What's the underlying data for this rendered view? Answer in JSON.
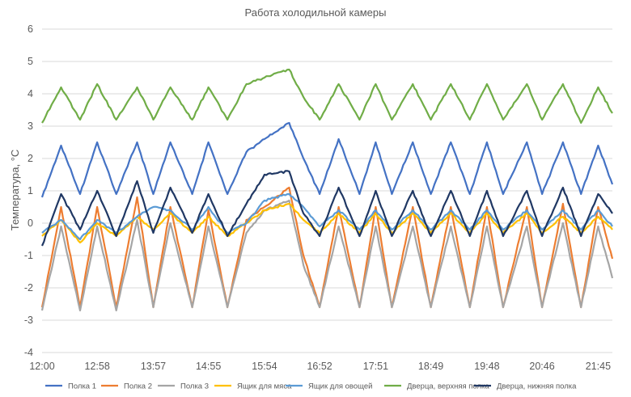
{
  "chart_data": {
    "type": "line",
    "title": "Работа холодильной камеры",
    "xlabel": "",
    "ylabel": "Температура, °С",
    "ylim": [
      -4,
      6
    ],
    "yticks": [
      "6",
      "5",
      "4",
      "3",
      "2",
      "1",
      "0",
      "-1",
      "-2",
      "-3",
      "-4"
    ],
    "xticks": [
      "12:00",
      "12:58",
      "13:57",
      "14:55",
      "15:54",
      "16:52",
      "17:51",
      "18:49",
      "19:48",
      "20:46",
      "21:45"
    ],
    "grid": true,
    "legend": "bottom",
    "series": [
      {
        "name": "Полка 1",
        "color": "#4472c4",
        "x": [
          "12:00",
          "12:20",
          "12:40",
          "12:58",
          "13:18",
          "13:40",
          "13:57",
          "14:15",
          "14:38",
          "14:55",
          "15:15",
          "15:35",
          "15:54",
          "16:20",
          "16:35",
          "16:52",
          "17:12",
          "17:34",
          "17:51",
          "18:08",
          "18:30",
          "18:49",
          "19:10",
          "19:30",
          "19:48",
          "20:05",
          "20:30",
          "20:46",
          "21:08",
          "21:27",
          "21:45",
          "22:00"
        ],
        "y": [
          0.8,
          2.4,
          0.9,
          2.5,
          0.9,
          2.5,
          0.9,
          2.5,
          0.9,
          2.5,
          0.9,
          2.2,
          2.6,
          3.1,
          2.0,
          0.9,
          2.6,
          0.9,
          2.5,
          0.9,
          2.5,
          0.9,
          2.5,
          0.9,
          2.5,
          0.9,
          2.5,
          0.9,
          2.5,
          0.9,
          2.4,
          1.2
        ]
      },
      {
        "name": "Полка 2",
        "color": "#ed7d31",
        "x": [
          "12:00",
          "12:20",
          "12:40",
          "12:58",
          "13:18",
          "13:40",
          "13:57",
          "14:15",
          "14:38",
          "14:55",
          "15:15",
          "15:35",
          "15:54",
          "16:20",
          "16:35",
          "16:52",
          "17:12",
          "17:34",
          "17:51",
          "18:08",
          "18:30",
          "18:49",
          "19:10",
          "19:30",
          "19:48",
          "20:05",
          "20:30",
          "20:46",
          "21:08",
          "21:27",
          "21:45",
          "22:00"
        ],
        "y": [
          -2.6,
          0.5,
          -2.6,
          0.5,
          -2.6,
          0.8,
          -2.6,
          0.5,
          -2.6,
          0.4,
          -2.6,
          0.1,
          0.5,
          1.1,
          -1.0,
          -2.6,
          0.5,
          -2.6,
          0.5,
          -2.6,
          0.5,
          -2.6,
          0.5,
          -2.6,
          0.5,
          -2.6,
          0.5,
          -2.6,
          0.6,
          -2.6,
          0.5,
          -1.1
        ]
      },
      {
        "name": "Полка 3",
        "color": "#a5a5a5",
        "x": [
          "12:00",
          "12:20",
          "12:40",
          "12:58",
          "13:18",
          "13:40",
          "13:57",
          "14:15",
          "14:38",
          "14:55",
          "15:15",
          "15:35",
          "15:54",
          "16:20",
          "16:35",
          "16:52",
          "17:12",
          "17:34",
          "17:51",
          "18:08",
          "18:30",
          "18:49",
          "19:10",
          "19:30",
          "19:48",
          "20:05",
          "20:30",
          "20:46",
          "21:08",
          "21:27",
          "21:45",
          "22:00"
        ],
        "y": [
          -2.7,
          -0.1,
          -2.7,
          -0.1,
          -2.7,
          0.1,
          -2.6,
          0.0,
          -2.6,
          -0.1,
          -2.6,
          -0.3,
          0.4,
          0.7,
          -1.3,
          -2.6,
          -0.1,
          -2.6,
          -0.1,
          -2.6,
          -0.1,
          -2.6,
          -0.1,
          -2.6,
          -0.1,
          -2.6,
          -0.1,
          -2.6,
          0.0,
          -2.6,
          -0.1,
          -1.7
        ]
      },
      {
        "name": "Ящик для мяса",
        "color": "#ffc000",
        "x": [
          "12:00",
          "12:20",
          "12:40",
          "12:58",
          "13:18",
          "13:40",
          "13:57",
          "14:15",
          "14:38",
          "14:55",
          "15:15",
          "15:35",
          "15:54",
          "16:20",
          "16:35",
          "16:52",
          "17:12",
          "17:34",
          "17:51",
          "18:08",
          "18:30",
          "18:49",
          "19:10",
          "19:30",
          "19:48",
          "20:05",
          "20:30",
          "20:46",
          "21:08",
          "21:27",
          "21:45",
          "22:00"
        ],
        "y": [
          -0.4,
          0.1,
          -0.6,
          0.0,
          -0.4,
          0.2,
          -0.2,
          0.3,
          -0.3,
          0.2,
          -0.4,
          0.0,
          0.4,
          0.6,
          0.1,
          -0.3,
          0.3,
          -0.3,
          0.3,
          -0.3,
          0.3,
          -0.3,
          0.3,
          -0.3,
          0.3,
          -0.3,
          0.3,
          -0.3,
          0.2,
          -0.3,
          0.2,
          -0.2
        ]
      },
      {
        "name": "Ящик для овощей",
        "color": "#5b9bd5",
        "x": [
          "12:00",
          "12:20",
          "12:40",
          "12:58",
          "13:18",
          "13:40",
          "13:57",
          "14:15",
          "14:38",
          "14:55",
          "15:15",
          "15:35",
          "15:54",
          "16:20",
          "16:35",
          "16:52",
          "17:12",
          "17:34",
          "17:51",
          "18:08",
          "18:30",
          "18:49",
          "19:10",
          "19:30",
          "19:48",
          "20:05",
          "20:30",
          "20:46",
          "21:08",
          "21:27",
          "21:45",
          "22:00"
        ],
        "y": [
          -0.3,
          0.1,
          -0.5,
          0.1,
          -0.3,
          0.2,
          0.5,
          0.4,
          -0.2,
          0.5,
          -0.3,
          0.0,
          0.7,
          0.9,
          0.5,
          -0.1,
          0.4,
          -0.2,
          0.4,
          -0.2,
          0.4,
          -0.2,
          0.4,
          -0.2,
          0.4,
          -0.2,
          0.4,
          -0.2,
          0.4,
          -0.2,
          0.4,
          -0.1
        ]
      },
      {
        "name": "Дверца, верхняя полка",
        "color": "#70ad47",
        "x": [
          "12:00",
          "12:20",
          "12:40",
          "12:58",
          "13:18",
          "13:40",
          "13:57",
          "14:15",
          "14:38",
          "14:55",
          "15:15",
          "15:35",
          "15:54",
          "16:20",
          "16:35",
          "16:52",
          "17:12",
          "17:34",
          "17:51",
          "18:08",
          "18:30",
          "18:49",
          "19:10",
          "19:30",
          "19:48",
          "20:05",
          "20:30",
          "20:46",
          "21:08",
          "21:27",
          "21:45",
          "22:00"
        ],
        "y": [
          3.1,
          4.2,
          3.2,
          4.3,
          3.2,
          4.2,
          3.2,
          4.2,
          3.2,
          4.2,
          3.2,
          4.3,
          4.5,
          4.75,
          3.9,
          3.2,
          4.3,
          3.2,
          4.3,
          3.2,
          4.3,
          3.2,
          4.3,
          3.2,
          4.3,
          3.2,
          4.3,
          3.2,
          4.3,
          3.1,
          4.2,
          3.4
        ]
      },
      {
        "name": "Дверца, нижняя полка",
        "color": "#203864",
        "x": [
          "12:00",
          "12:20",
          "12:40",
          "12:58",
          "13:18",
          "13:40",
          "13:57",
          "14:15",
          "14:38",
          "14:55",
          "15:15",
          "15:35",
          "15:54",
          "16:20",
          "16:35",
          "16:52",
          "17:12",
          "17:34",
          "17:51",
          "18:08",
          "18:30",
          "18:49",
          "19:10",
          "19:30",
          "19:48",
          "20:05",
          "20:30",
          "20:46",
          "21:08",
          "21:27",
          "21:45",
          "22:00"
        ],
        "y": [
          -0.7,
          0.9,
          -0.2,
          1.0,
          -0.4,
          1.3,
          -0.3,
          1.1,
          -0.3,
          0.9,
          -0.4,
          0.6,
          1.5,
          1.6,
          0.3,
          -0.4,
          1.1,
          -0.4,
          1.0,
          -0.4,
          1.0,
          -0.4,
          1.0,
          -0.4,
          1.0,
          -0.4,
          1.0,
          -0.4,
          1.1,
          -0.4,
          0.9,
          0.3
        ]
      }
    ]
  }
}
